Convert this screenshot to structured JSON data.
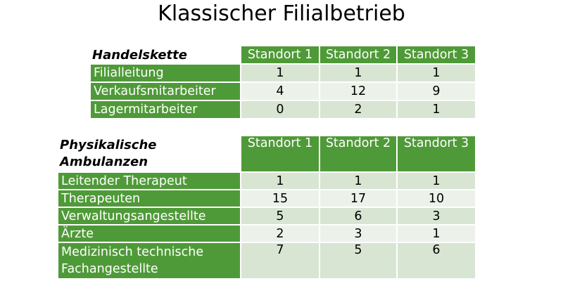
{
  "title": "Klassischer Filialbetrieb",
  "table1": {
    "name": "Handelskette",
    "columns": [
      "Standort 1",
      "Standort 2",
      "Standort 3"
    ],
    "rows": [
      {
        "label": "Filialleitung",
        "values": [
          "1",
          "1",
          "1"
        ]
      },
      {
        "label": "Verkaufsmitarbeiter",
        "values": [
          "4",
          "12",
          "9"
        ]
      },
      {
        "label": "Lagermitarbeiter",
        "values": [
          "0",
          "2",
          "1"
        ]
      }
    ]
  },
  "table2": {
    "name_line1": "Physikalische",
    "name_line2": "Ambulanzen",
    "columns": [
      "Standort 1",
      "Standort 2",
      "Standort 3"
    ],
    "rows": [
      {
        "label": "Leitender Therapeut",
        "values": [
          "1",
          "1",
          "1"
        ]
      },
      {
        "label": "Therapeuten",
        "values": [
          "15",
          "17",
          "10"
        ]
      },
      {
        "label": "Verwaltungsangestellte",
        "values": [
          "5",
          "6",
          "3"
        ]
      },
      {
        "label": "Ärzte",
        "values": [
          "2",
          "3",
          "1"
        ]
      },
      {
        "label_line1": "Medizinisch technische",
        "label_line2": "Fachangestellte",
        "values": [
          "7",
          "5",
          "6"
        ]
      }
    ]
  }
}
